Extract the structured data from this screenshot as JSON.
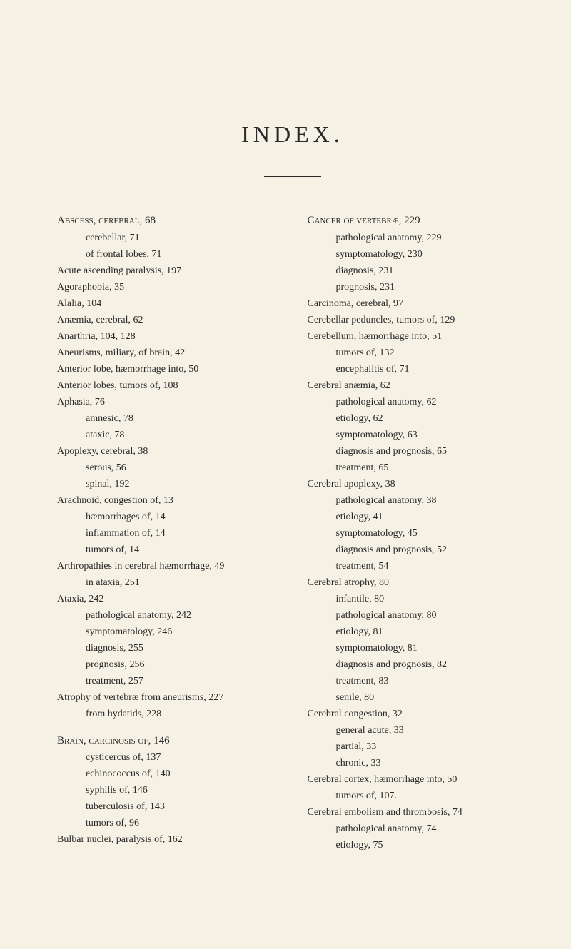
{
  "title": "INDEX.",
  "left_column": [
    {
      "text": "Abscess, cerebral, 68",
      "class": "smallcaps",
      "indent": 0
    },
    {
      "text": "cerebellar, 71",
      "indent": 2
    },
    {
      "text": "of frontal lobes, 71",
      "indent": 2
    },
    {
      "text": "Acute ascending paralysis, 197",
      "indent": 0
    },
    {
      "text": "Agoraphobia, 35",
      "indent": 0
    },
    {
      "text": "Alalia, 104",
      "indent": 0
    },
    {
      "text": "Anæmia, cerebral, 62",
      "indent": 0
    },
    {
      "text": "Anarthria, 104, 128",
      "indent": 0
    },
    {
      "text": "Aneurisms, miliary, of brain, 42",
      "indent": 0
    },
    {
      "text": "Anterior lobe, hæmorrhage into, 50",
      "indent": 0
    },
    {
      "text": "Anterior lobes, tumors of, 108",
      "indent": 0
    },
    {
      "text": "Aphasia, 76",
      "indent": 0
    },
    {
      "text": "amnesic, 78",
      "indent": 2
    },
    {
      "text": "ataxic, 78",
      "indent": 2
    },
    {
      "text": "Apoplexy, cerebral, 38",
      "indent": 0
    },
    {
      "text": "serous, 56",
      "indent": 2
    },
    {
      "text": "spinal, 192",
      "indent": 2
    },
    {
      "text": "Arachnoid, congestion of, 13",
      "indent": 0
    },
    {
      "text": "hæmorrhages of, 14",
      "indent": 2
    },
    {
      "text": "inflammation of, 14",
      "indent": 2
    },
    {
      "text": "tumors of, 14",
      "indent": 2
    },
    {
      "text": "Arthropathies in cerebral hæmorrhage, 49",
      "indent": 0
    },
    {
      "text": "in ataxia, 251",
      "indent": 2
    },
    {
      "text": "Ataxia, 242",
      "indent": 0
    },
    {
      "text": "pathological anatomy, 242",
      "indent": 2
    },
    {
      "text": "symptomatology, 246",
      "indent": 2
    },
    {
      "text": "diagnosis, 255",
      "indent": 2
    },
    {
      "text": "prognosis, 256",
      "indent": 2
    },
    {
      "text": "treatment, 257",
      "indent": 2
    },
    {
      "text": "Atrophy of vertebræ from aneurisms, 227",
      "indent": 0
    },
    {
      "text": "from hydatids, 228",
      "indent": 2
    },
    {
      "text": "",
      "spacer": true
    },
    {
      "text": "Brain, carcinosis of, 146",
      "class": "smallcaps",
      "indent": 0
    },
    {
      "text": "cysticercus of, 137",
      "indent": 2
    },
    {
      "text": "echinococcus of, 140",
      "indent": 2
    },
    {
      "text": "syphilis of, 146",
      "indent": 2
    },
    {
      "text": "tuberculosis of, 143",
      "indent": 2
    },
    {
      "text": "tumors of, 96",
      "indent": 2
    },
    {
      "text": "Bulbar nuclei, paralysis of, 162",
      "indent": 0
    }
  ],
  "right_column": [
    {
      "text": "Cancer of vertebræ, 229",
      "class": "smallcaps",
      "indent": 0
    },
    {
      "text": "pathological anatomy, 229",
      "indent": 2
    },
    {
      "text": "symptomatology, 230",
      "indent": 2
    },
    {
      "text": "diagnosis, 231",
      "indent": 2
    },
    {
      "text": "prognosis, 231",
      "indent": 2
    },
    {
      "text": "Carcinoma, cerebral, 97",
      "indent": 0
    },
    {
      "text": "Cerebellar peduncles, tumors of, 129",
      "indent": 0
    },
    {
      "text": "Cerebellum, hæmorrhage into, 51",
      "indent": 0
    },
    {
      "text": "tumors of, 132",
      "indent": 2
    },
    {
      "text": "encephalitis of, 71",
      "indent": 2
    },
    {
      "text": "Cerebral anæmia, 62",
      "indent": 0
    },
    {
      "text": "pathological anatomy, 62",
      "indent": 2
    },
    {
      "text": "etiology, 62",
      "indent": 2
    },
    {
      "text": "symptomatology, 63",
      "indent": 2
    },
    {
      "text": "diagnosis and prognosis, 65",
      "indent": 2
    },
    {
      "text": "treatment, 65",
      "indent": 2
    },
    {
      "text": "Cerebral apoplexy, 38",
      "indent": 0
    },
    {
      "text": "pathological anatomy, 38",
      "indent": 2
    },
    {
      "text": "etiology, 41",
      "indent": 2
    },
    {
      "text": "symptomatology, 45",
      "indent": 2
    },
    {
      "text": "diagnosis and prognosis, 52",
      "indent": 2
    },
    {
      "text": "treatment, 54",
      "indent": 2
    },
    {
      "text": "Cerebral atrophy, 80",
      "indent": 0
    },
    {
      "text": "infantile, 80",
      "indent": 2
    },
    {
      "text": "pathological anatomy, 80",
      "indent": 2
    },
    {
      "text": "etiology, 81",
      "indent": 2
    },
    {
      "text": "symptomatology, 81",
      "indent": 2
    },
    {
      "text": "diagnosis and prognosis, 82",
      "indent": 2
    },
    {
      "text": "treatment, 83",
      "indent": 2
    },
    {
      "text": "senile, 80",
      "indent": 2
    },
    {
      "text": "Cerebral congestion, 32",
      "indent": 0
    },
    {
      "text": "general acute, 33",
      "indent": 2
    },
    {
      "text": "partial, 33",
      "indent": 2
    },
    {
      "text": "chronic, 33",
      "indent": 2
    },
    {
      "text": "Cerebral cortex, hæmorrhage into, 50",
      "indent": 0
    },
    {
      "text": "tumors of, 107.",
      "indent": 2
    },
    {
      "text": "Cerebral embolism and thrombosis, 74",
      "indent": 0
    },
    {
      "text": "pathological anatomy, 74",
      "indent": 2
    },
    {
      "text": "etiology, 75",
      "indent": 2
    }
  ],
  "style": {
    "background_color": "#f5f1e4",
    "text_color": "#2a2a2a",
    "title_fontsize": 32,
    "body_fontsize": 14
  }
}
